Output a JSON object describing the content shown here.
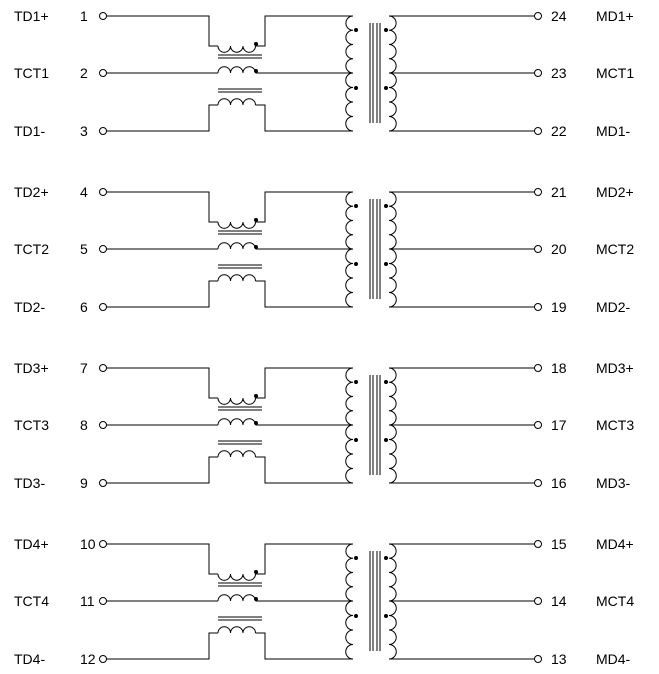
{
  "schematic": {
    "channels": [
      {
        "left": [
          {
            "name": "TD1+",
            "pin": "1"
          },
          {
            "name": "TCT1",
            "pin": "2"
          },
          {
            "name": "TD1-",
            "pin": "3"
          }
        ],
        "right": [
          {
            "name": "MD1+",
            "pin": "24"
          },
          {
            "name": "MCT1",
            "pin": "23"
          },
          {
            "name": "MD1-",
            "pin": "22"
          }
        ]
      },
      {
        "left": [
          {
            "name": "TD2+",
            "pin": "4"
          },
          {
            "name": "TCT2",
            "pin": "5"
          },
          {
            "name": "TD2-",
            "pin": "6"
          }
        ],
        "right": [
          {
            "name": "MD2+",
            "pin": "21"
          },
          {
            "name": "MCT2",
            "pin": "20"
          },
          {
            "name": "MD2-",
            "pin": "19"
          }
        ]
      },
      {
        "left": [
          {
            "name": "TD3+",
            "pin": "7"
          },
          {
            "name": "TCT3",
            "pin": "8"
          },
          {
            "name": "TD3-",
            "pin": "9"
          }
        ],
        "right": [
          {
            "name": "MD3+",
            "pin": "18"
          },
          {
            "name": "MCT3",
            "pin": "17"
          },
          {
            "name": "MD3-",
            "pin": "16"
          }
        ]
      },
      {
        "left": [
          {
            "name": "TD4+",
            "pin": "10"
          },
          {
            "name": "TCT4",
            "pin": "11"
          },
          {
            "name": "TD4-",
            "pin": "12"
          }
        ],
        "right": [
          {
            "name": "MD4+",
            "pin": "15"
          },
          {
            "name": "MCT4",
            "pin": "14"
          },
          {
            "name": "MD4-",
            "pin": "13"
          }
        ]
      }
    ]
  }
}
